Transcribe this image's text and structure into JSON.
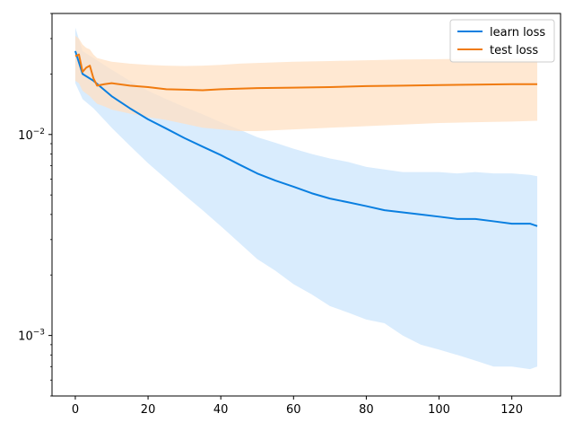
{
  "chart_data": {
    "type": "line",
    "title": "",
    "xlabel": "",
    "ylabel": "",
    "xlim": [
      -6.4,
      133.4
    ],
    "ylim": [
      0.0005,
      0.04
    ],
    "yscale": "log",
    "grid": false,
    "legend_position": "top-right",
    "x_ticks": [
      0,
      20,
      40,
      60,
      80,
      100,
      120
    ],
    "y_major_ticks": [
      {
        "value": 0.001,
        "label": "10",
        "exp": "−3"
      },
      {
        "value": 0.01,
        "label": "10",
        "exp": "−2"
      }
    ],
    "series": [
      {
        "name": "learn loss",
        "color": "#1f77b4",
        "line_color": "#0a7fe0",
        "fill_color": "#cce5fc",
        "x": [
          0,
          2,
          5,
          10,
          15,
          20,
          25,
          30,
          35,
          40,
          45,
          50,
          55,
          60,
          65,
          70,
          75,
          80,
          85,
          90,
          95,
          100,
          105,
          110,
          115,
          120,
          125,
          127
        ],
        "mean": [
          0.026,
          0.02,
          0.0185,
          0.0155,
          0.0135,
          0.0119,
          0.0107,
          0.0096,
          0.0087,
          0.0079,
          0.0071,
          0.0064,
          0.0059,
          0.0055,
          0.0051,
          0.0048,
          0.0046,
          0.0044,
          0.0042,
          0.0041,
          0.004,
          0.0039,
          0.0038,
          0.0038,
          0.0037,
          0.0036,
          0.0036,
          0.0035
        ],
        "upper": [
          0.034,
          0.026,
          0.024,
          0.021,
          0.0185,
          0.0165,
          0.015,
          0.0137,
          0.0126,
          0.0115,
          0.0106,
          0.0097,
          0.0091,
          0.0085,
          0.008,
          0.0076,
          0.0073,
          0.0069,
          0.0067,
          0.0065,
          0.0065,
          0.0065,
          0.0064,
          0.0065,
          0.0064,
          0.0064,
          0.0063,
          0.0062
        ],
        "lower": [
          0.018,
          0.015,
          0.0135,
          0.0108,
          0.0088,
          0.0072,
          0.006,
          0.005,
          0.0042,
          0.0035,
          0.0029,
          0.0024,
          0.0021,
          0.0018,
          0.0016,
          0.0014,
          0.0013,
          0.0012,
          0.00115,
          0.001,
          0.0009,
          0.00085,
          0.0008,
          0.00075,
          0.0007,
          0.0007,
          0.00068,
          0.0007
        ]
      },
      {
        "name": "test loss",
        "color": "#ff7f0e",
        "line_color": "#f07b10",
        "fill_color": "#ffe0c3",
        "x": [
          0,
          1,
          2,
          3,
          4,
          5,
          6,
          8,
          10,
          15,
          20,
          25,
          30,
          35,
          40,
          45,
          50,
          60,
          70,
          80,
          90,
          100,
          110,
          120,
          127
        ],
        "mean": [
          0.0245,
          0.025,
          0.0205,
          0.0215,
          0.022,
          0.019,
          0.0175,
          0.0178,
          0.018,
          0.0175,
          0.0172,
          0.0168,
          0.0167,
          0.0166,
          0.0168,
          0.0169,
          0.017,
          0.0171,
          0.0172,
          0.0174,
          0.0175,
          0.0176,
          0.0177,
          0.0178,
          0.0178
        ],
        "upper": [
          0.031,
          0.03,
          0.028,
          0.027,
          0.0265,
          0.025,
          0.024,
          0.0235,
          0.023,
          0.0225,
          0.0222,
          0.022,
          0.0219,
          0.022,
          0.0222,
          0.0225,
          0.0227,
          0.023,
          0.0232,
          0.0234,
          0.0236,
          0.0237,
          0.0238,
          0.0238,
          0.0238
        ],
        "lower": [
          0.0185,
          0.018,
          0.0165,
          0.016,
          0.0155,
          0.0148,
          0.0142,
          0.0138,
          0.0133,
          0.0127,
          0.0122,
          0.0118,
          0.0113,
          0.0108,
          0.0106,
          0.0104,
          0.0104,
          0.0106,
          0.0108,
          0.011,
          0.0112,
          0.0114,
          0.0115,
          0.0116,
          0.0117
        ]
      }
    ]
  }
}
